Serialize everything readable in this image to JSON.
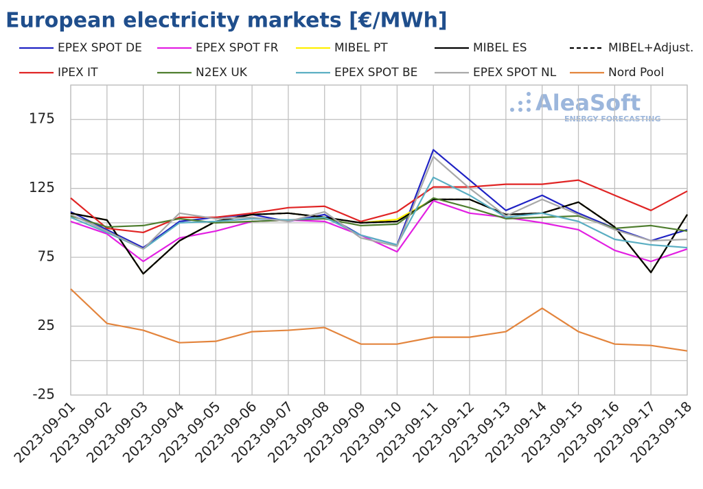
{
  "chart_data": {
    "type": "line",
    "title": "European electricity markets [€/MWh]",
    "watermark": {
      "name": "AleaSoft",
      "tagline": "ENERGY FORECASTING"
    },
    "x": [
      "2023-09-01",
      "2023-09-02",
      "2023-09-03",
      "2023-09-04",
      "2023-09-05",
      "2023-09-06",
      "2023-09-07",
      "2023-09-08",
      "2023-09-09",
      "2023-09-10",
      "2023-09-11",
      "2023-09-12",
      "2023-09-13",
      "2023-09-14",
      "2023-09-15",
      "2023-09-16",
      "2023-09-17",
      "2023-09-18"
    ],
    "ylim": [
      -25,
      200
    ],
    "yticks": [
      -25,
      25,
      75,
      125,
      175
    ],
    "ygrid": [
      0,
      50,
      100,
      150,
      200
    ],
    "grid": true,
    "series": [
      {
        "name": "EPEX SPOT DE",
        "color": "#1f22c4",
        "values": [
          108,
          95,
          82,
          101,
          104,
          106,
          101,
          106,
          91,
          84,
          153,
          131,
          109,
          120,
          107,
          96,
          87,
          95
        ]
      },
      {
        "name": "EPEX SPOT FR",
        "color": "#e21fe2",
        "values": [
          101,
          92,
          72,
          89,
          94,
          101,
          102,
          101,
          91,
          79,
          116,
          107,
          104,
          100,
          95,
          80,
          72,
          81
        ]
      },
      {
        "name": "MIBEL PT",
        "color": "#ffef00",
        "values": [
          107,
          102,
          63,
          87,
          101,
          106,
          107,
          104,
          100,
          102.5,
          117,
          117,
          106,
          107,
          115,
          97,
          64,
          106
        ]
      },
      {
        "name": "MIBEL ES",
        "color": "#000000",
        "values": [
          107,
          102,
          63,
          87,
          101,
          106,
          107,
          104,
          100,
          101,
          117,
          117,
          106,
          107,
          115,
          97,
          64,
          106
        ]
      },
      {
        "name": "MIBEL+Adjust.",
        "color": "#000000",
        "dashed": true,
        "values": [
          107,
          102,
          63,
          87,
          101,
          106,
          107,
          104,
          100,
          101,
          117,
          117,
          106,
          107,
          115,
          97,
          64,
          106
        ]
      },
      {
        "name": "IPEX IT",
        "color": "#e02424",
        "values": [
          118,
          96,
          93,
          104,
          104,
          107,
          111,
          112,
          101,
          108,
          126,
          126,
          128,
          128,
          131,
          120,
          109,
          123
        ]
      },
      {
        "name": "N2EX UK",
        "color": "#4e7d2e",
        "values": [
          105,
          97,
          98,
          103,
          100,
          101,
          102,
          103,
          98,
          99,
          118,
          111,
          103,
          104,
          105,
          96,
          98,
          94
        ]
      },
      {
        "name": "EPEX SPOT BE",
        "color": "#5aaec2",
        "values": [
          104,
          93,
          81,
          100,
          101,
          103,
          102,
          104,
          91,
          84,
          133,
          120,
          104,
          107,
          101,
          88,
          84,
          82
        ]
      },
      {
        "name": "EPEX SPOT NL",
        "color": "#a8a8a8",
        "values": [
          106,
          94,
          81,
          107,
          103,
          104,
          101,
          108,
          89,
          83,
          148,
          125,
          105,
          117,
          106,
          95,
          87,
          88
        ]
      },
      {
        "name": "Nord Pool",
        "color": "#e3843c",
        "values": [
          52,
          27,
          22,
          13,
          14,
          21,
          22,
          24,
          12,
          12,
          17,
          17,
          21,
          38,
          21,
          12,
          11,
          7
        ]
      }
    ]
  }
}
